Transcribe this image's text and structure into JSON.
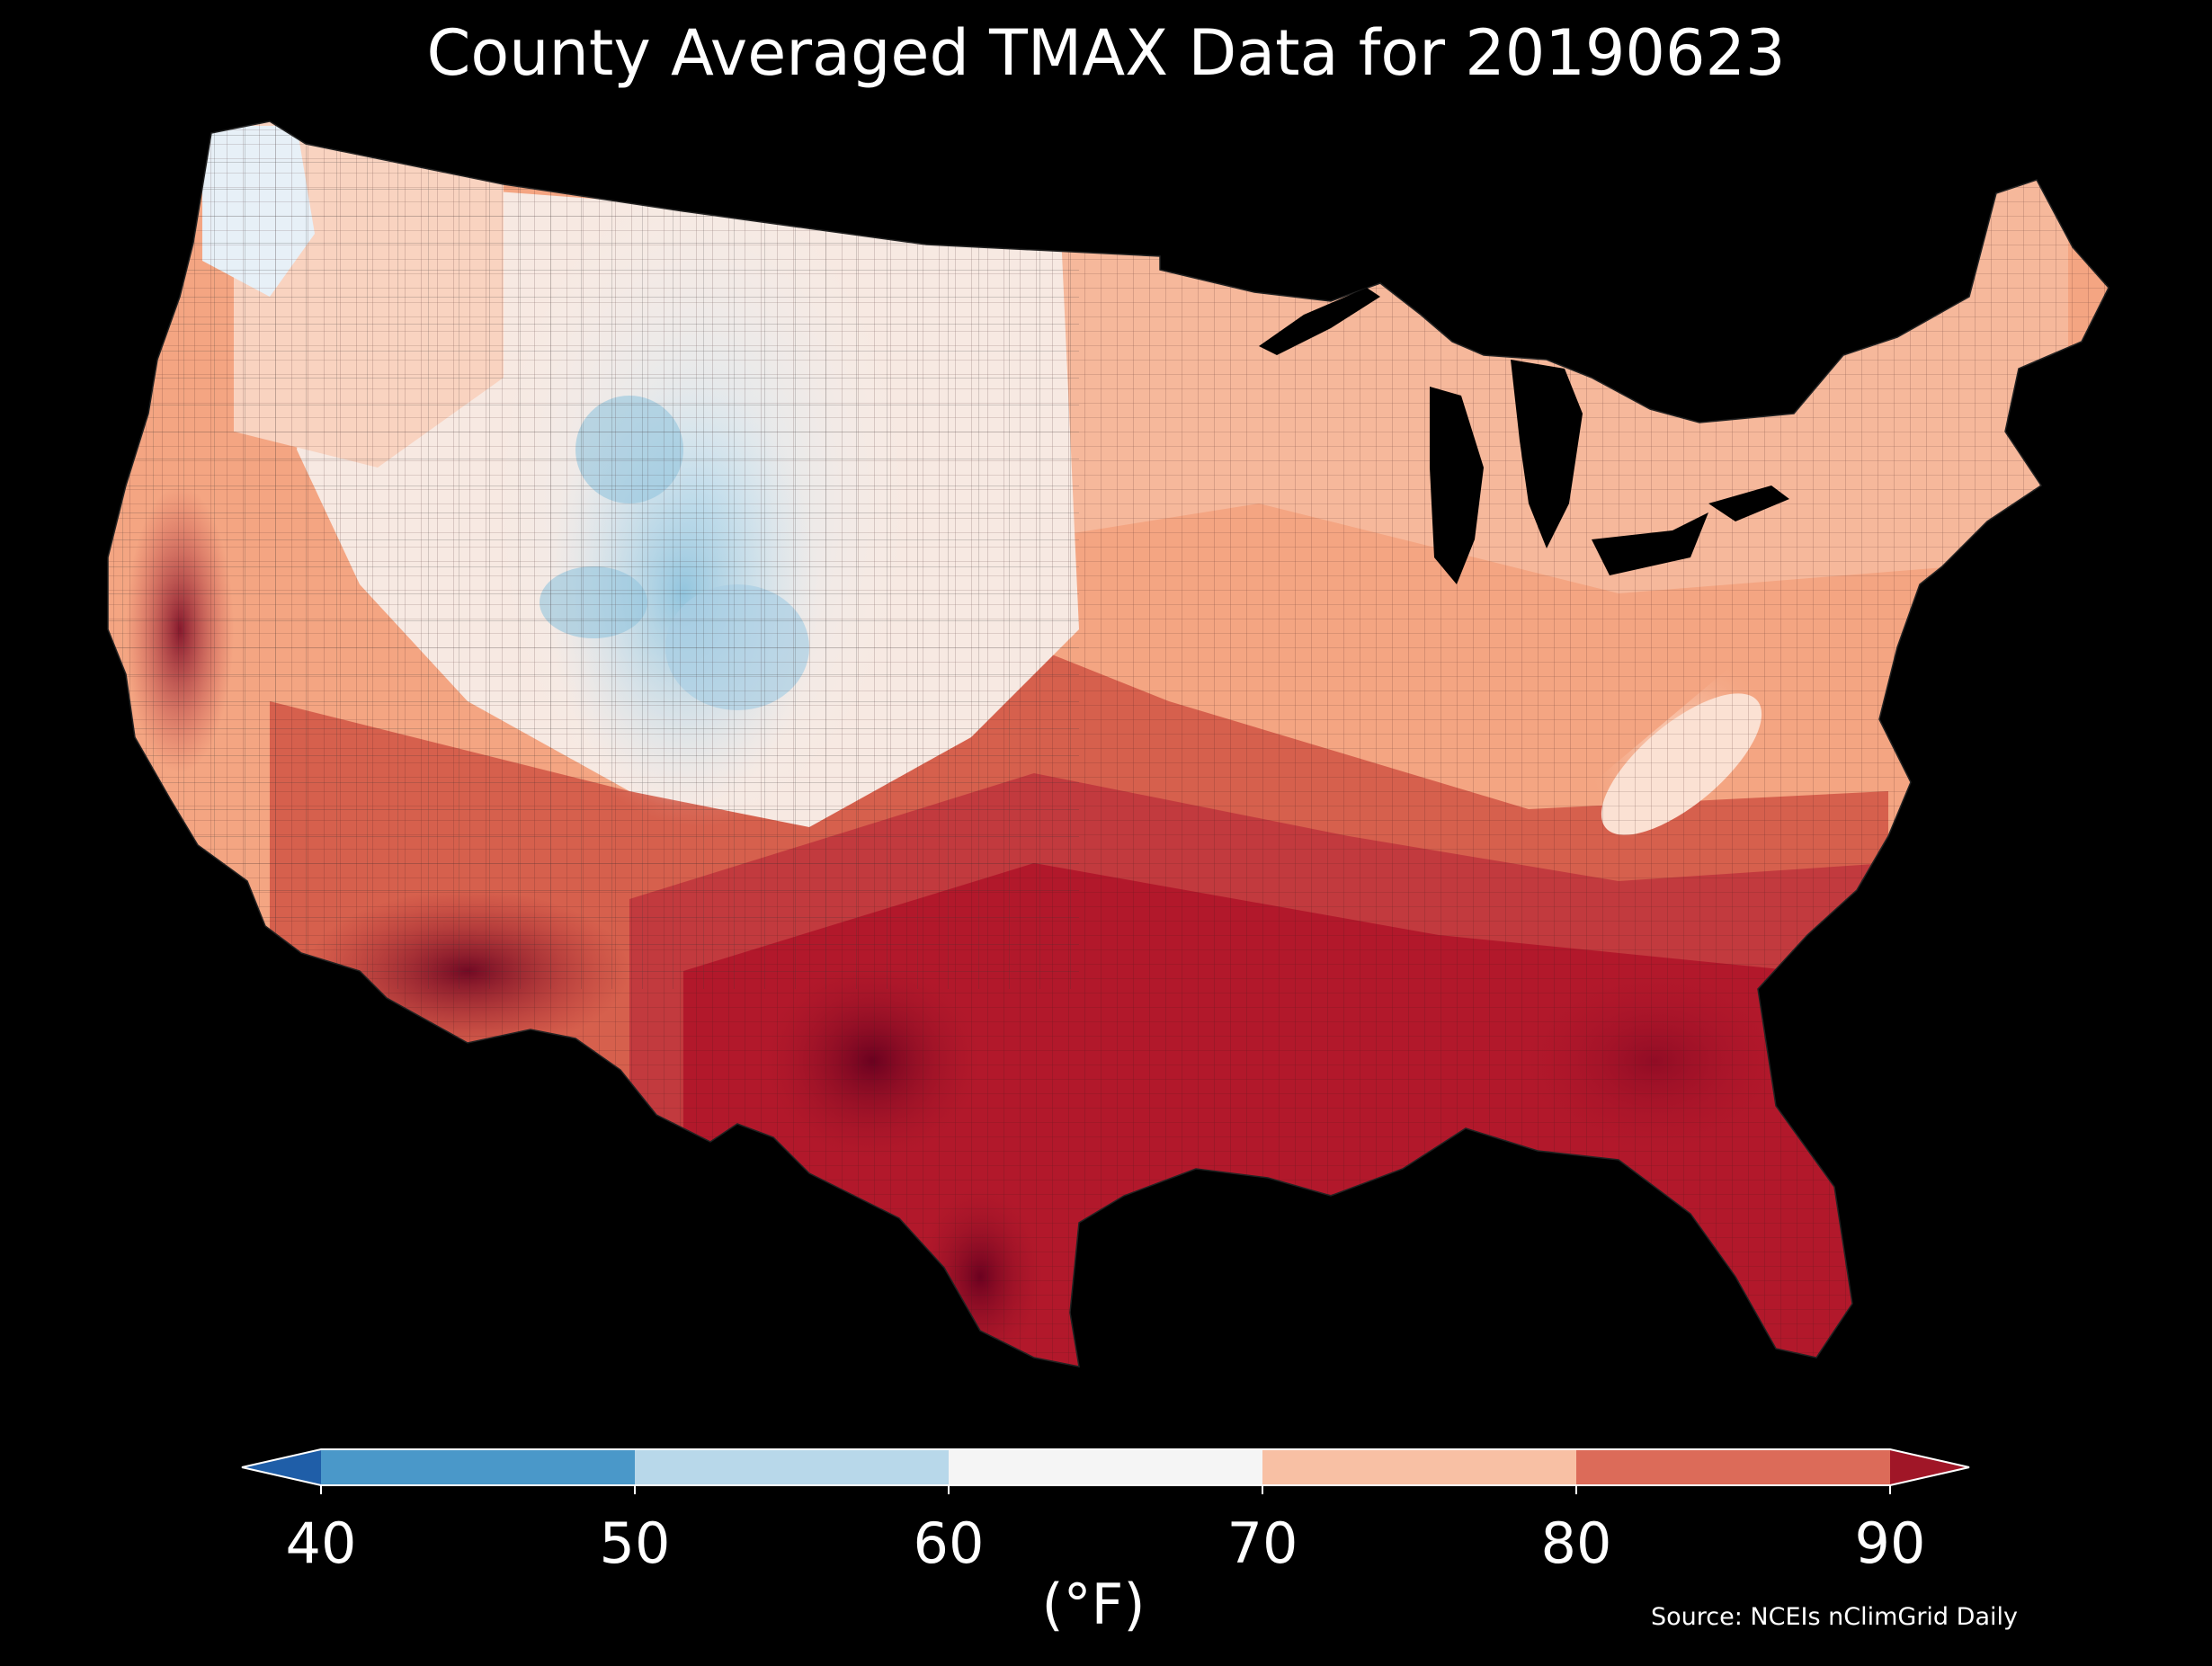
{
  "title": "County Averaged TMAX Data for 20190623",
  "source": "Source: NCEIs nClimGrid Daily",
  "colorbar": {
    "unit": "(°F)",
    "ticks": [
      "40",
      "50",
      "60",
      "70",
      "80",
      "90"
    ],
    "tick_values": [
      40,
      50,
      60,
      70,
      80,
      90
    ],
    "extend": "both",
    "bins": [
      {
        "from": null,
        "to": 40,
        "color": "#1f5ea8"
      },
      {
        "from": 40,
        "to": 50,
        "color": "#4a98c9"
      },
      {
        "from": 50,
        "to": 60,
        "color": "#b8d8ea"
      },
      {
        "from": 60,
        "to": 70,
        "color": "#f5f5f5"
      },
      {
        "from": 70,
        "to": 80,
        "color": "#f8c0a4"
      },
      {
        "from": 80,
        "to": 90,
        "color": "#dc6b59"
      },
      {
        "from": 90,
        "to": null,
        "color": "#a01627"
      }
    ]
  },
  "map": {
    "region": "Contiguous United States",
    "background": "#000000",
    "border_color": "#2a2a2a"
  }
}
